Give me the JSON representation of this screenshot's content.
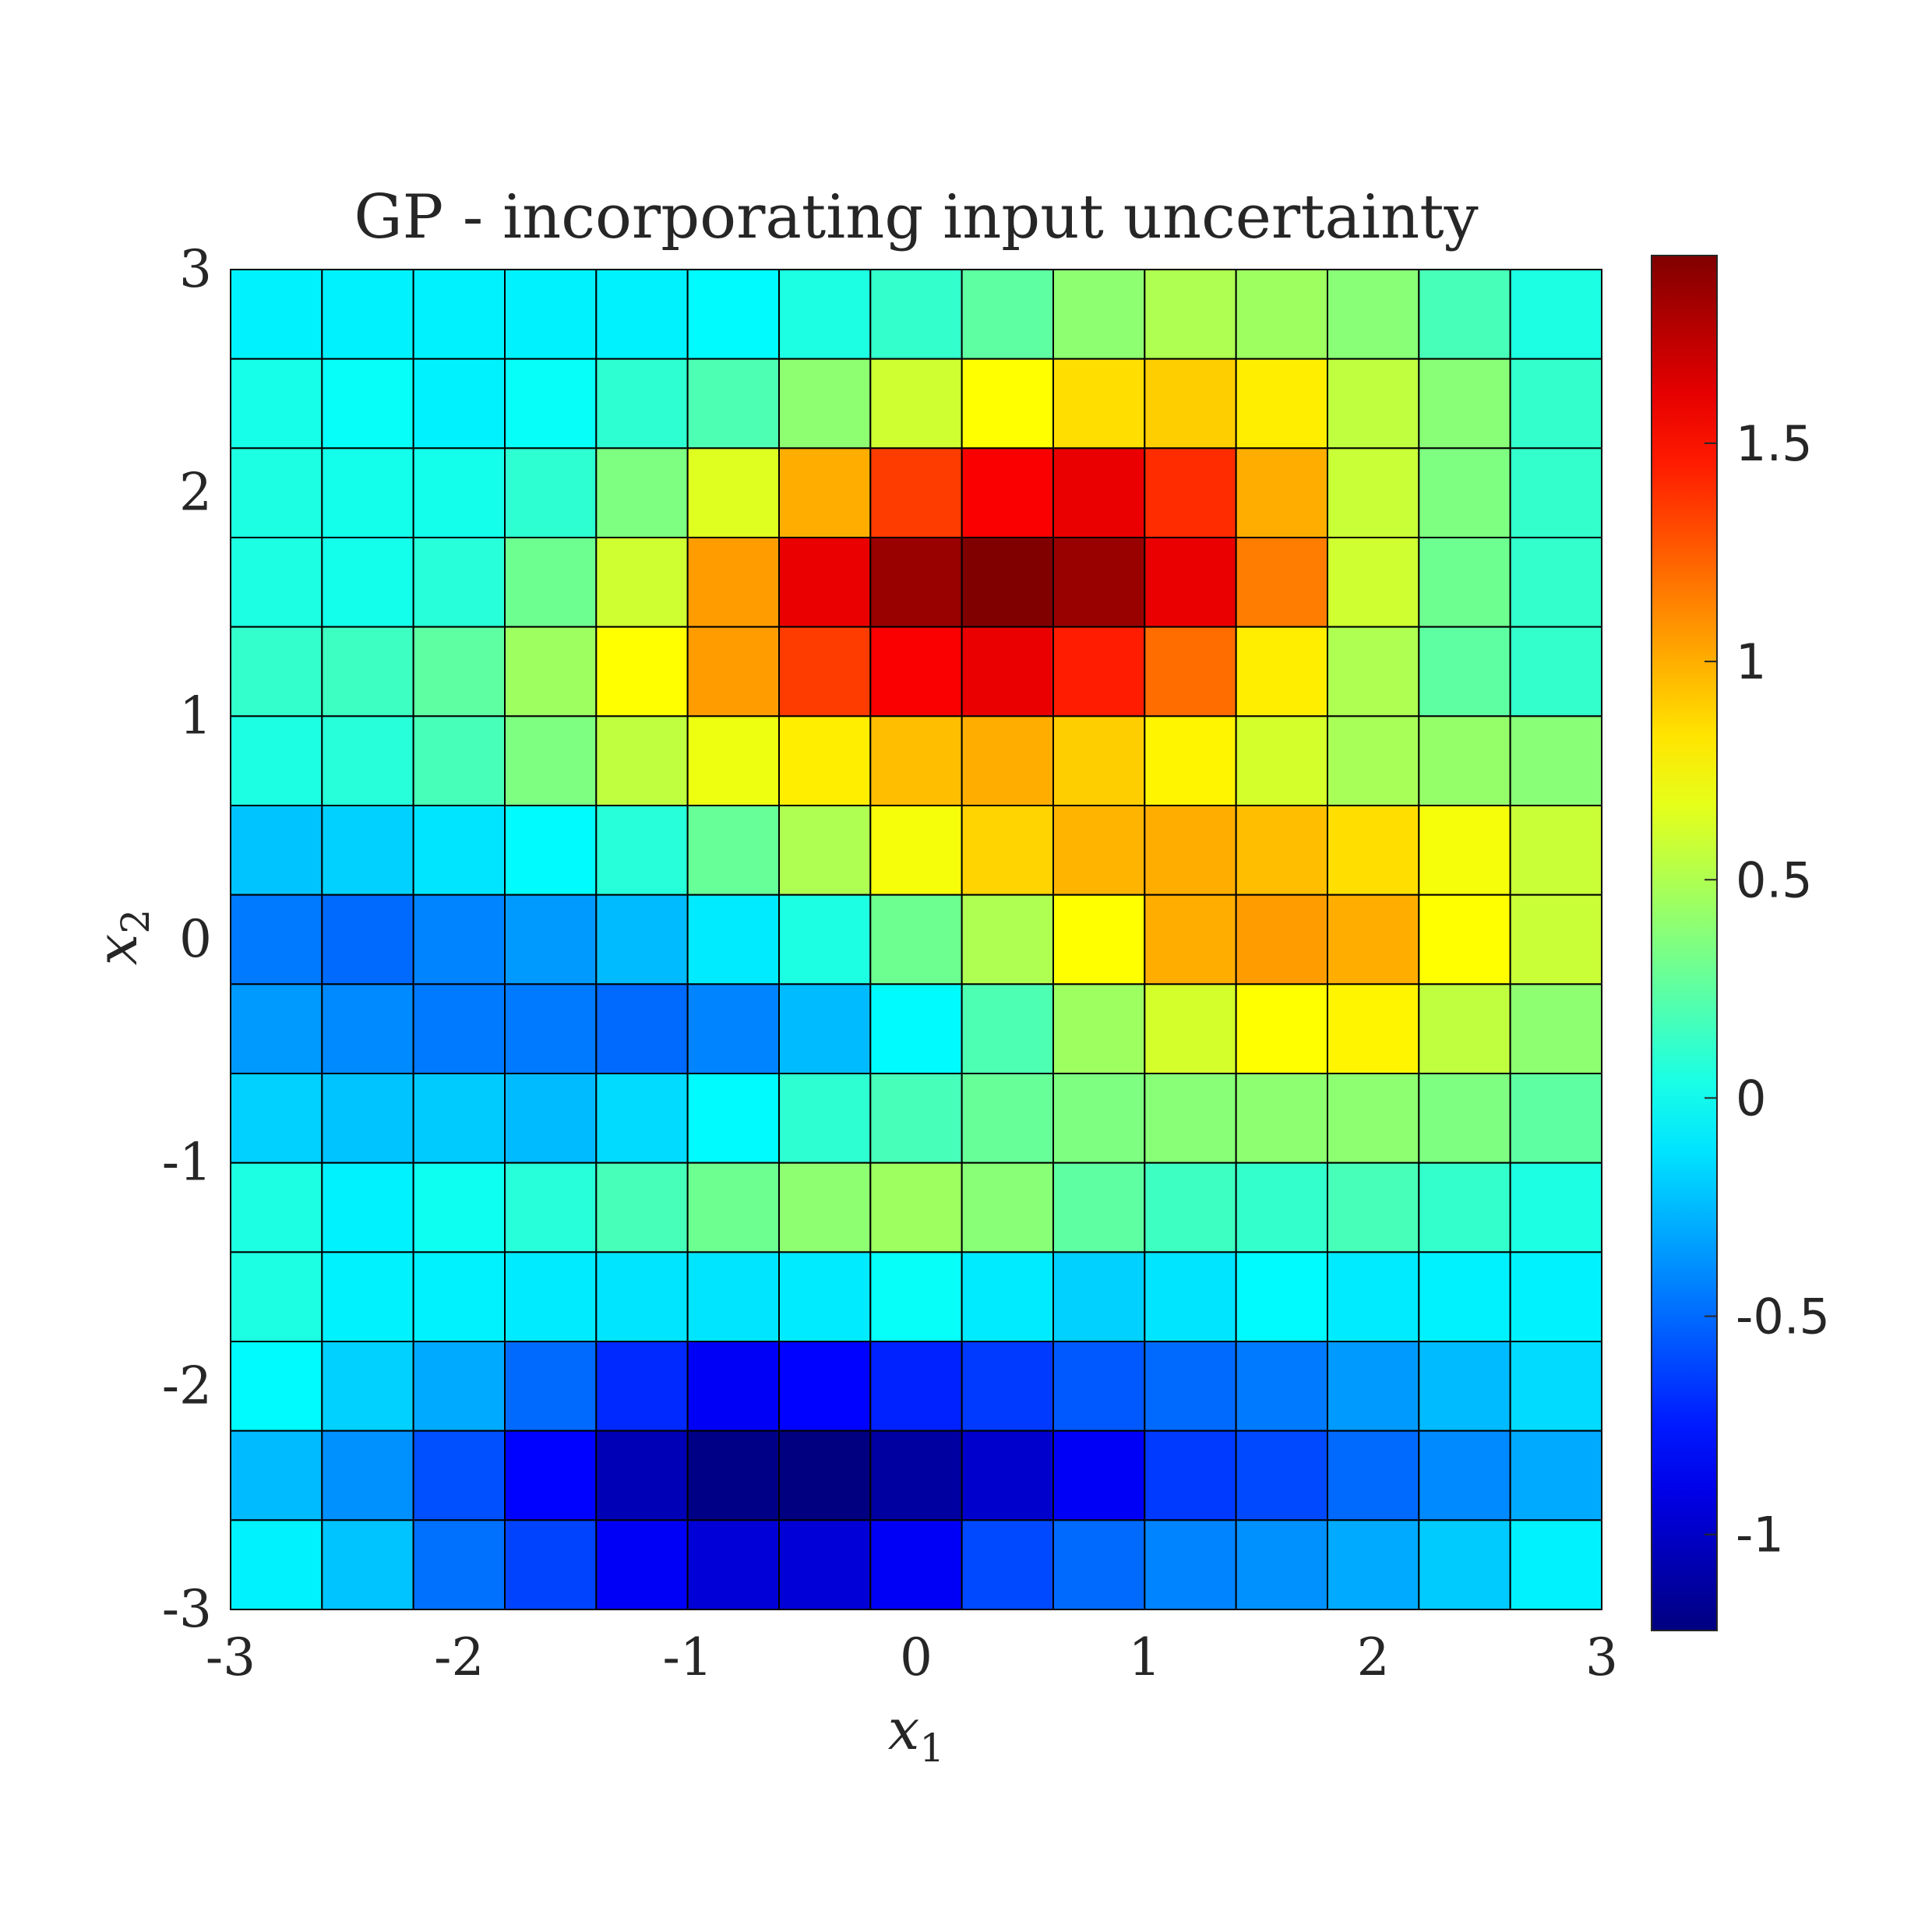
{
  "chart_data": {
    "type": "heatmap",
    "title": "GP - incorporating input uncertainty",
    "xlabel": "x",
    "xlabel_sub": "1",
    "ylabel": "x",
    "ylabel_sub": "2",
    "xlim": [
      -3,
      3
    ],
    "ylim": [
      -3,
      3
    ],
    "x_ticks": [
      "-3",
      "-2",
      "-1",
      "0",
      "1",
      "2",
      "3"
    ],
    "y_ticks": [
      "-3",
      "-2",
      "-1",
      "0",
      "1",
      "2",
      "3"
    ],
    "colorbar": {
      "colormap": "jet",
      "clim": [
        -1.22,
        1.93
      ],
      "ticks": [
        "-1",
        "-0.5",
        "0",
        "0.5",
        "1",
        "1.5"
      ],
      "tick_values": [
        -1,
        -0.5,
        0,
        0.5,
        1,
        1.5
      ]
    },
    "grid_cells": "15 x 15",
    "z_rows_top_to_bottom": [
      [
        -0.08,
        -0.08,
        -0.08,
        -0.08,
        -0.08,
        -0.05,
        0.05,
        0.12,
        0.25,
        0.4,
        0.5,
        0.45,
        0.38,
        0.18,
        0.05
      ],
      [
        0.03,
        -0.02,
        -0.08,
        -0.02,
        0.1,
        0.2,
        0.4,
        0.6,
        0.75,
        0.85,
        0.9,
        0.8,
        0.55,
        0.38,
        0.12
      ],
      [
        0.05,
        0.02,
        0.02,
        0.1,
        0.35,
        0.65,
        1.0,
        1.35,
        1.55,
        1.6,
        1.4,
        1.0,
        0.58,
        0.35,
        0.12
      ],
      [
        0.05,
        0.02,
        0.08,
        0.3,
        0.6,
        1.05,
        1.6,
        1.85,
        1.93,
        1.85,
        1.6,
        1.15,
        0.6,
        0.3,
        0.12
      ],
      [
        0.12,
        0.15,
        0.25,
        0.45,
        0.75,
        1.05,
        1.35,
        1.55,
        1.6,
        1.45,
        1.2,
        0.8,
        0.5,
        0.25,
        0.12
      ],
      [
        0.05,
        0.08,
        0.18,
        0.35,
        0.55,
        0.7,
        0.8,
        0.95,
        1.0,
        0.9,
        0.78,
        0.62,
        0.48,
        0.42,
        0.38
      ],
      [
        -0.22,
        -0.18,
        -0.12,
        -0.05,
        0.08,
        0.28,
        0.5,
        0.72,
        0.88,
        0.98,
        1.0,
        0.95,
        0.85,
        0.72,
        0.58
      ],
      [
        -0.45,
        -0.5,
        -0.42,
        -0.35,
        -0.25,
        -0.1,
        0.05,
        0.3,
        0.5,
        0.75,
        1.0,
        1.05,
        1.0,
        0.75,
        0.58
      ],
      [
        -0.35,
        -0.4,
        -0.45,
        -0.45,
        -0.5,
        -0.42,
        -0.25,
        -0.05,
        0.2,
        0.45,
        0.62,
        0.75,
        0.78,
        0.55,
        0.4
      ],
      [
        -0.18,
        -0.22,
        -0.2,
        -0.25,
        -0.15,
        -0.05,
        0.1,
        0.18,
        0.28,
        0.35,
        0.38,
        0.4,
        0.4,
        0.35,
        0.25
      ],
      [
        0.05,
        -0.08,
        0.0,
        0.08,
        0.18,
        0.3,
        0.4,
        0.45,
        0.38,
        0.25,
        0.15,
        0.12,
        0.18,
        0.12,
        0.05
      ],
      [
        0.05,
        -0.08,
        -0.08,
        -0.1,
        -0.12,
        -0.12,
        -0.1,
        -0.02,
        -0.1,
        -0.18,
        -0.12,
        -0.05,
        -0.1,
        -0.08,
        -0.08
      ],
      [
        -0.05,
        -0.18,
        -0.3,
        -0.5,
        -0.7,
        -0.85,
        -0.82,
        -0.72,
        -0.65,
        -0.55,
        -0.5,
        -0.45,
        -0.35,
        -0.25,
        -0.15
      ],
      [
        -0.25,
        -0.38,
        -0.58,
        -0.82,
        -1.05,
        -1.2,
        -1.22,
        -1.12,
        -0.98,
        -0.85,
        -0.65,
        -0.6,
        -0.5,
        -0.4,
        -0.3
      ],
      [
        -0.08,
        -0.22,
        -0.48,
        -0.62,
        -0.85,
        -0.95,
        -0.95,
        -0.85,
        -0.6,
        -0.5,
        -0.42,
        -0.38,
        -0.3,
        -0.2,
        -0.08
      ]
    ]
  }
}
